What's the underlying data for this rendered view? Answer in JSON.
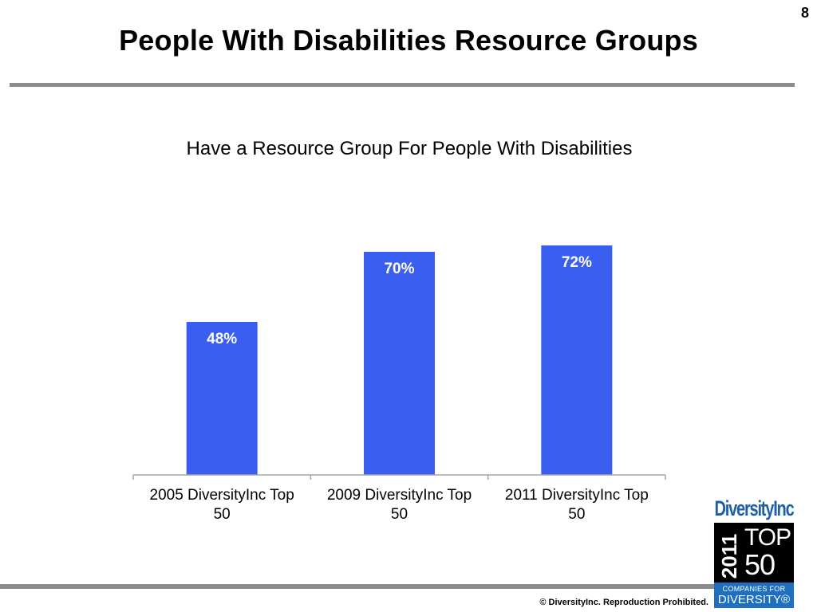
{
  "slide": {
    "page_number": "8",
    "title": "People With Disabilities Resource Groups",
    "copyright": "© DiversityInc.  Reproduction Prohibited."
  },
  "logo": {
    "brand": "DiversityInc",
    "year": "2011",
    "top": "TOP",
    "fifty": "50",
    "companies_for": "COMPANIES FOR",
    "diversity": "DIVERSITY®"
  },
  "colors": {
    "bar": "#3a5ff0",
    "rule": "#8c8c8c",
    "axis": "#a6a6a6"
  },
  "chart_data": {
    "type": "bar",
    "title": "Have a Resource Group For People With Disabilities",
    "categories": [
      "2005 DiversityInc Top 50",
      "2009 DiversityInc Top 50",
      "2011 DiversityInc Top 50"
    ],
    "category_lines": [
      [
        "2005 DiversityInc Top",
        "50"
      ],
      [
        "2009 DiversityInc Top",
        "50"
      ],
      [
        "2011 DiversityInc Top",
        "50"
      ]
    ],
    "values": [
      48,
      70,
      72
    ],
    "data_labels": [
      "48%",
      "70%",
      "72%"
    ],
    "ylim": [
      0,
      100
    ],
    "grid": false,
    "legend": "none"
  }
}
